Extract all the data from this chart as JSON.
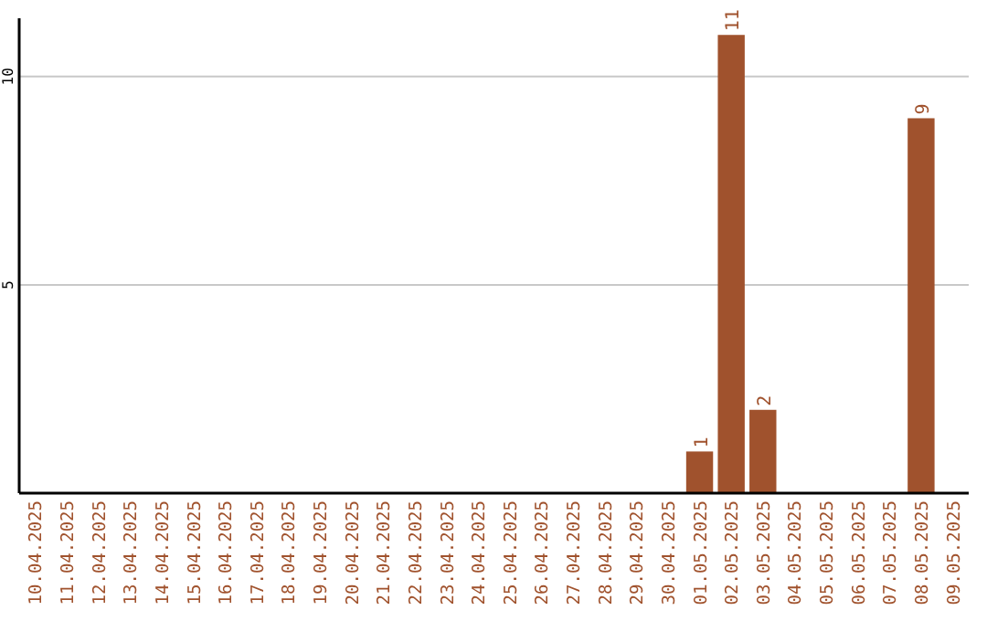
{
  "chart_data": {
    "type": "bar",
    "categories": [
      "10.04.2025",
      "11.04.2025",
      "12.04.2025",
      "13.04.2025",
      "14.04.2025",
      "15.04.2025",
      "16.04.2025",
      "17.04.2025",
      "18.04.2025",
      "19.04.2025",
      "20.04.2025",
      "21.04.2025",
      "22.04.2025",
      "23.04.2025",
      "24.04.2025",
      "25.04.2025",
      "26.04.2025",
      "27.04.2025",
      "28.04.2025",
      "29.04.2025",
      "30.04.2025",
      "01.05.2025",
      "02.05.2025",
      "03.05.2025",
      "04.05.2025",
      "05.05.2025",
      "06.05.2025",
      "07.05.2025",
      "08.05.2025",
      "09.05.2025"
    ],
    "values": [
      0,
      0,
      0,
      0,
      0,
      0,
      0,
      0,
      0,
      0,
      0,
      0,
      0,
      0,
      0,
      0,
      0,
      0,
      0,
      0,
      0,
      1,
      11,
      2,
      0,
      0,
      0,
      0,
      9,
      0
    ],
    "value_labels": [
      null,
      null,
      null,
      null,
      null,
      null,
      null,
      null,
      null,
      null,
      null,
      null,
      null,
      null,
      null,
      null,
      null,
      null,
      null,
      null,
      null,
      "1",
      "11",
      "2",
      null,
      null,
      null,
      null,
      "9",
      null
    ],
    "color": "#a0522d",
    "ylim": [
      0,
      11.4
    ],
    "yticks": [
      5,
      10
    ],
    "grid": "y"
  }
}
